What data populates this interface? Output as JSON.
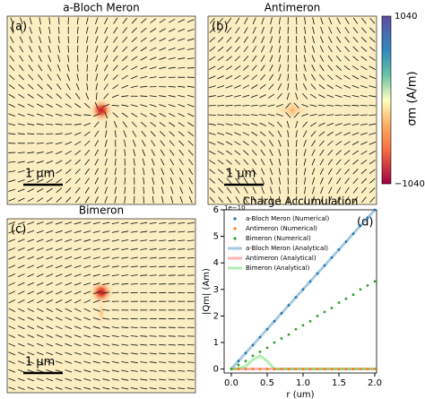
{
  "panels": [
    {
      "title": "a-Bloch Meron",
      "label": "(a)",
      "scale_bar": "1 μm"
    },
    {
      "title": "Antimeron",
      "label": "(b)",
      "scale_bar": "1 μm"
    },
    {
      "title": "Bimeron",
      "label": "(c)",
      "scale_bar": "1 μm"
    }
  ],
  "colorbar": {
    "max_label": "1040",
    "min_label": "−1040",
    "label": "σm (A/m)"
  },
  "chart_data": {
    "type": "line",
    "title": "Charge Accumulation",
    "panel_label": "(d)",
    "x_label": "r (um)",
    "y_label": "|Qm| (Am)",
    "y_offset_label": "1e−10",
    "xlim": [
      -0.1,
      2.025
    ],
    "ylim": [
      -0.15,
      6
    ],
    "xticks": [
      {
        "value": 0,
        "label": "0.0"
      },
      {
        "value": 0.5,
        "label": "0.5"
      },
      {
        "value": 1,
        "label": "1.0"
      },
      {
        "value": 1.5,
        "label": "1.5"
      },
      {
        "value": 2,
        "label": "2.0"
      }
    ],
    "yticks": [
      0,
      1,
      2,
      3,
      4,
      5,
      6
    ],
    "legend": "upper left",
    "x": [
      0,
      0.1,
      0.2,
      0.3,
      0.4,
      0.5,
      0.6,
      0.7,
      0.8,
      0.9,
      1.0,
      1.1,
      1.2,
      1.3,
      1.4,
      1.5,
      1.6,
      1.7,
      1.8,
      1.9,
      2.0
    ],
    "series": [
      {
        "name": "a-Bloch Meron (Numerical)",
        "color": "#1f77b4",
        "style": "marker",
        "values": [
          0,
          0.3,
          0.6,
          0.9,
          1.2,
          1.5,
          1.8,
          2.1,
          2.4,
          2.7,
          3.0,
          3.3,
          3.6,
          3.9,
          4.2,
          4.5,
          4.8,
          5.1,
          5.4,
          5.7,
          6.0
        ]
      },
      {
        "name": "Antimeron (Numerical)",
        "color": "#ff7f0e",
        "style": "marker",
        "values": [
          0,
          0,
          0,
          0,
          0,
          0,
          0,
          0,
          0,
          0,
          0,
          0,
          0,
          0,
          0,
          0,
          0,
          0,
          0,
          0,
          0
        ]
      },
      {
        "name": "Bimeron (Numerical)",
        "color": "#2ca02c",
        "style": "marker",
        "values": [
          0,
          0.15,
          0.3,
          0.5,
          0.65,
          0.8,
          1.0,
          1.15,
          1.3,
          1.5,
          1.65,
          1.8,
          2.0,
          2.15,
          2.3,
          2.5,
          2.65,
          2.8,
          3.0,
          3.15,
          3.3
        ]
      },
      {
        "name": "a-Bloch Meron (Analytical)",
        "color": "#1f77b4",
        "style": "line",
        "values": [
          0,
          0.3,
          0.6,
          0.9,
          1.2,
          1.5,
          1.8,
          2.1,
          2.4,
          2.7,
          3.0,
          3.3,
          3.6,
          3.9,
          4.2,
          4.5,
          4.8,
          5.1,
          5.4,
          5.7,
          6.0
        ]
      },
      {
        "name": "Antimeron (Analytical)",
        "color": "#ff4040",
        "style": "line",
        "values": [
          0,
          0,
          0,
          0,
          0,
          0,
          0,
          0,
          0,
          0,
          0,
          0,
          0,
          0,
          0,
          0,
          0,
          0,
          0,
          0,
          0
        ]
      },
      {
        "name": "Bimeron (Analytical)",
        "color": "#3cd23c",
        "style": "line",
        "values": [
          0,
          0.02,
          0.1,
          0.35,
          0.5,
          0.3,
          0,
          0,
          0,
          0,
          0,
          0,
          0,
          0,
          0,
          0,
          0,
          0,
          0,
          0,
          0
        ]
      }
    ]
  }
}
